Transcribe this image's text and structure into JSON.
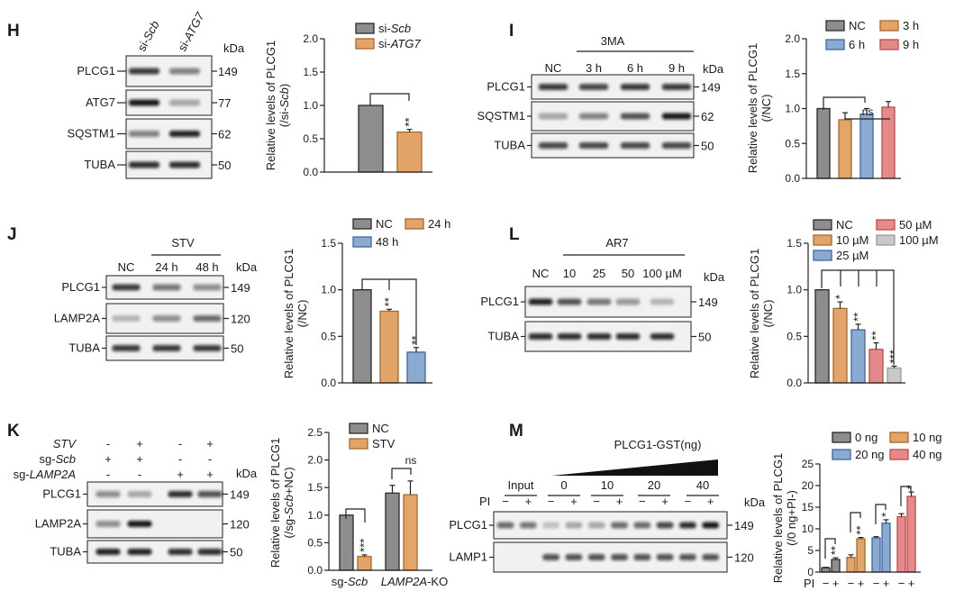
{
  "colors": {
    "grey": "#8d8d90",
    "orange": "#e3a468",
    "blue": "#8aaad2",
    "red": "#e48a8a",
    "lightgrey": "#c8c8c8"
  },
  "strokes": {
    "grey": "#2a2a2a",
    "orange": "#a8682c",
    "blue": "#3d679e",
    "red": "#c24848",
    "lightgrey": "#9a9a9a"
  },
  "blots": {
    "H": {
      "letter": "H",
      "kda": "kDa",
      "lanes": [
        [
          "si-",
          "Scb"
        ],
        [
          "si-",
          "ATG7"
        ]
      ],
      "rows": [
        {
          "label": "PLCG1",
          "kda": "149",
          "bands": [
            0.8,
            0.5
          ]
        },
        {
          "label": "ATG7",
          "kda": "77",
          "bands": [
            0.95,
            0.35
          ]
        },
        {
          "label": "SQSTM1",
          "kda": "62",
          "bands": [
            0.5,
            0.9
          ]
        },
        {
          "label": "TUBA",
          "kda": "50",
          "bands": [
            0.85,
            0.85
          ]
        }
      ]
    },
    "I": {
      "letter": "I",
      "kda": "kDa",
      "treatment": "3MA",
      "lanes": [
        "NC",
        "3 h",
        "6 h",
        "9 h"
      ],
      "rows": [
        {
          "label": "PLCG1",
          "kda": "149",
          "bands": [
            0.8,
            0.75,
            0.8,
            0.8
          ]
        },
        {
          "label": "SQSTM1",
          "kda": "62",
          "bands": [
            0.35,
            0.5,
            0.7,
            0.95
          ]
        },
        {
          "label": "TUBA",
          "kda": "50",
          "bands": [
            0.75,
            0.75,
            0.75,
            0.75
          ]
        }
      ]
    },
    "J": {
      "letter": "J",
      "kda": "kDa",
      "treatment": "STV",
      "lanes": [
        "NC",
        "24 h",
        "48 h"
      ],
      "rows": [
        {
          "label": "PLCG1",
          "kda": "149",
          "bands": [
            0.8,
            0.55,
            0.45
          ]
        },
        {
          "label": "LAMP2A",
          "kda": "120",
          "bands": [
            0.25,
            0.45,
            0.6
          ]
        },
        {
          "label": "TUBA",
          "kda": "50",
          "bands": [
            0.8,
            0.8,
            0.8
          ]
        }
      ]
    },
    "L": {
      "letter": "L",
      "kda": "kDa",
      "treatment": "AR7",
      "lanes": [
        "NC",
        "10",
        "25",
        "50",
        "100 µM"
      ],
      "rows": [
        {
          "label": "PLCG1",
          "kda": "149",
          "bands": [
            0.9,
            0.7,
            0.55,
            0.4,
            0.25
          ]
        },
        {
          "label": "TUBA",
          "kda": "50",
          "bands": [
            0.85,
            0.85,
            0.85,
            0.85,
            0.85
          ]
        }
      ]
    },
    "K": {
      "letter": "K",
      "kda": "kDa",
      "conditions": [
        {
          "label": [
            "",
            "STV"
          ],
          "signs": [
            "-",
            "+",
            "-",
            "+"
          ]
        },
        {
          "label": [
            "sg-",
            "Scb"
          ],
          "signs": [
            "+",
            "+",
            "-",
            "-"
          ]
        },
        {
          "label": [
            "sg-",
            "LAMP2A"
          ],
          "signs": [
            "-",
            "-",
            "+",
            "+"
          ]
        }
      ],
      "rows": [
        {
          "label": "PLCG1",
          "kda": "149",
          "bands": [
            0.45,
            0.3,
            0.85,
            0.7
          ]
        },
        {
          "label": "LAMP2A",
          "kda": "120",
          "bands": [
            0.45,
            0.95,
            0,
            0
          ]
        },
        {
          "label": "TUBA",
          "kda": "50",
          "bands": [
            0.9,
            0.9,
            0.85,
            0.85
          ]
        }
      ]
    },
    "M": {
      "letter": "M",
      "kda": "kDa",
      "treatment": "PLCG1-GST(ng)",
      "row_label": "PI",
      "groups": [
        "Input",
        "0",
        "10",
        "20",
        "40"
      ],
      "signs": [
        "−",
        "+",
        "−",
        "+",
        "−",
        "+",
        "−",
        "+",
        "−",
        "+"
      ],
      "rows": [
        {
          "label": "PLCG1",
          "kda": "149",
          "bands": [
            0.6,
            0.55,
            0.2,
            0.3,
            0.3,
            0.6,
            0.6,
            0.75,
            0.85,
            0.95
          ]
        },
        {
          "label": "LAMP1",
          "kda": "120",
          "bands": [
            0,
            0,
            0.7,
            0.7,
            0.7,
            0.7,
            0.7,
            0.7,
            0.7,
            0.7
          ]
        }
      ]
    }
  },
  "chart_data": [
    {
      "panel": "H",
      "type": "bar",
      "ylabel": "Relative levels of PLCG1",
      "ylabel2": [
        "(/si-",
        "Scb",
        ")"
      ],
      "ylim": [
        0,
        2.0
      ],
      "yticks": [
        "0.0",
        "0.5",
        "1.0",
        "1.5",
        "2.0"
      ],
      "legend": [
        {
          "label": [
            "si-",
            "Scb"
          ],
          "color": "grey"
        },
        {
          "label": [
            "si-",
            "ATG7"
          ],
          "color": "orange"
        }
      ],
      "bars": [
        {
          "value": 1.0,
          "error": 0,
          "series": 0,
          "sig": ""
        },
        {
          "value": 0.6,
          "error": 0.04,
          "series": 1,
          "sig": "**"
        }
      ]
    },
    {
      "panel": "I",
      "type": "bar",
      "ylabel": "Relative levels of PLCG1",
      "ylabel2": [
        "(/NC)"
      ],
      "ylim": [
        0,
        2.0
      ],
      "yticks": [
        "0.0",
        "0.5",
        "1.0",
        "1.5",
        "2.0"
      ],
      "ns_label": "ns",
      "legend": [
        {
          "label": [
            "NC"
          ],
          "color": "grey"
        },
        {
          "label": [
            "3 h"
          ],
          "color": "orange"
        },
        {
          "label": [
            "6 h"
          ],
          "color": "blue"
        },
        {
          "label": [
            "9 h"
          ],
          "color": "red"
        }
      ],
      "bars": [
        {
          "value": 1.0,
          "error": 0,
          "series": 0,
          "sig": ""
        },
        {
          "value": 0.84,
          "error": 0.1,
          "series": 1,
          "sig": ""
        },
        {
          "value": 0.92,
          "error": 0.08,
          "series": 2,
          "sig": ""
        },
        {
          "value": 1.02,
          "error": 0.08,
          "series": 3,
          "sig": ""
        }
      ]
    },
    {
      "panel": "J",
      "type": "bar",
      "ylabel": "Relative levels of PLCG1",
      "ylabel2": [
        "(/NC)"
      ],
      "ylim": [
        0,
        1.5
      ],
      "yticks": [
        "0.0",
        "0.5",
        "1.0",
        "1.5"
      ],
      "legend": [
        {
          "label": [
            "NC"
          ],
          "color": "grey"
        },
        {
          "label": [
            "24 h"
          ],
          "color": "orange"
        },
        {
          "label": [
            "48 h"
          ],
          "color": "blue"
        }
      ],
      "bars": [
        {
          "value": 1.0,
          "error": 0,
          "series": 0,
          "sig": ""
        },
        {
          "value": 0.77,
          "error": 0.02,
          "series": 1,
          "sig": "**"
        },
        {
          "value": 0.33,
          "error": 0.05,
          "series": 2,
          "sig": "**"
        }
      ]
    },
    {
      "panel": "L",
      "type": "bar",
      "ylabel": "Relative levels of PLCG1",
      "ylabel2": [
        "(/NC)"
      ],
      "ylim": [
        0,
        1.5
      ],
      "yticks": [
        "0.0",
        "0.5",
        "1.0",
        "1.5"
      ],
      "legend": [
        {
          "label": [
            "NC"
          ],
          "color": "grey"
        },
        {
          "label": [
            "10 µM"
          ],
          "color": "orange"
        },
        {
          "label": [
            "25 µM"
          ],
          "color": "blue"
        },
        {
          "label": [
            "50 µM"
          ],
          "color": "red"
        },
        {
          "label": [
            "100 µM"
          ],
          "color": "lightgrey"
        }
      ],
      "bars": [
        {
          "value": 1.0,
          "error": 0,
          "series": 0,
          "sig": ""
        },
        {
          "value": 0.8,
          "error": 0.07,
          "series": 1,
          "sig": "*"
        },
        {
          "value": 0.57,
          "error": 0.06,
          "series": 2,
          "sig": "**"
        },
        {
          "value": 0.36,
          "error": 0.07,
          "series": 3,
          "sig": "**"
        },
        {
          "value": 0.16,
          "error": 0.02,
          "series": 4,
          "sig": "***"
        }
      ]
    },
    {
      "panel": "K",
      "type": "bar",
      "ylabel": "Relative levels of PLCG1",
      "ylabel2": [
        "(/sg-",
        "Scb",
        "+NC)"
      ],
      "ylim": [
        0,
        2.5
      ],
      "yticks": [
        "0.0",
        "0.5",
        "1.0",
        "1.5",
        "2.0",
        "2.5"
      ],
      "ns_label": "ns",
      "categories": [
        [
          "sg-",
          "Scb"
        ],
        [
          "",
          "LAMP2A",
          "-KO"
        ]
      ],
      "legend": [
        {
          "label": [
            "NC"
          ],
          "color": "grey"
        },
        {
          "label": [
            "STV"
          ],
          "color": "orange"
        }
      ],
      "bars": [
        {
          "value": 1.0,
          "error": 0,
          "series": 0,
          "sig": ""
        },
        {
          "value": 0.25,
          "error": 0.03,
          "series": 1,
          "sig": "***"
        },
        {
          "value": 1.4,
          "error": 0.14,
          "series": 0,
          "sig": ""
        },
        {
          "value": 1.37,
          "error": 0.25,
          "series": 1,
          "sig": ""
        }
      ]
    },
    {
      "panel": "M",
      "type": "bar",
      "ylabel": "Relative levels of PLCG1",
      "ylabel2": [
        "(/0 ng+PI-)"
      ],
      "ylim": [
        0,
        25
      ],
      "yticks": [
        "0",
        "5",
        "10",
        "15",
        "20",
        "25"
      ],
      "xrow_label": "PI",
      "xsigns": [
        "−",
        "+",
        "−",
        "+",
        "−",
        "+",
        "−",
        "+"
      ],
      "legend": [
        {
          "label": [
            "0 ng"
          ],
          "color": "grey"
        },
        {
          "label": [
            "10 ng"
          ],
          "color": "orange"
        },
        {
          "label": [
            "20 ng"
          ],
          "color": "blue"
        },
        {
          "label": [
            "40 ng"
          ],
          "color": "red"
        }
      ],
      "bars": [
        {
          "value": 1.0,
          "error": 0.1,
          "series": 0,
          "sig": ""
        },
        {
          "value": 2.9,
          "error": 0.4,
          "series": 0,
          "sig": "**"
        },
        {
          "value": 3.4,
          "error": 0.6,
          "series": 1,
          "sig": ""
        },
        {
          "value": 7.7,
          "error": 0.3,
          "series": 1,
          "sig": "**"
        },
        {
          "value": 7.9,
          "error": 0.3,
          "series": 2,
          "sig": ""
        },
        {
          "value": 11.3,
          "error": 0.8,
          "series": 2,
          "sig": "*"
        },
        {
          "value": 12.8,
          "error": 0.7,
          "series": 3,
          "sig": ""
        },
        {
          "value": 17.5,
          "error": 1.0,
          "series": 3,
          "sig": "*"
        }
      ]
    }
  ]
}
